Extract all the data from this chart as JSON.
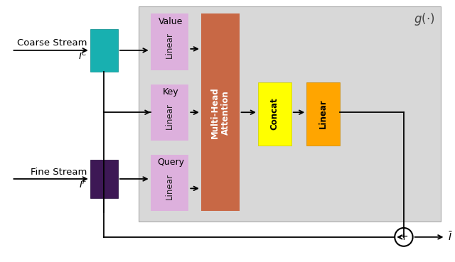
{
  "fig_bg": "#ffffff",
  "coarse_stream_label": "Coarse Stream",
  "coarse_math_label": "$I^C$",
  "fine_stream_label": "Fine Stream",
  "fine_math_label": "$I^F$",
  "output_label": "$\\bar{I}$",
  "value_label": "Value",
  "key_label": "Key",
  "query_label": "Query",
  "linear_label": "Linear",
  "mha_label": "Multi-Head\nAttention",
  "concat_label": "Concat",
  "linear2_label": "Linear",
  "g_label": "$g(\\cdot)$",
  "coarse_box_color": "#18B0B0",
  "fine_box_color": "#3D1855",
  "linear_bg_color": "#DDB0DD",
  "mha_color": "#C86845",
  "concat_color": "#FFFF00",
  "linear2_color": "#FFA500",
  "gray_box_color": "#D8D8D8",
  "fig_bg_color": "#ffffff"
}
